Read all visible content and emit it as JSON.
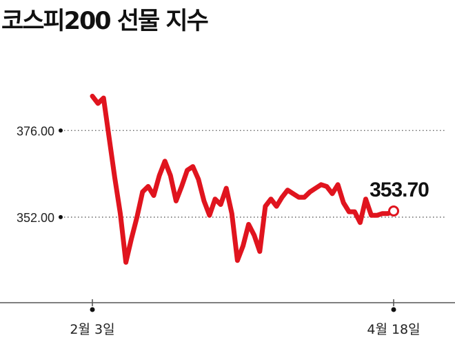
{
  "title": "코스피200 선물 지수",
  "chart_data": {
    "type": "line",
    "title": "코스피200 선물 지수",
    "xlabel": "",
    "ylabel": "",
    "ylim": [
      339.0,
      394.0
    ],
    "yticks": [
      {
        "value": 376.0,
        "label": "376.00"
      },
      {
        "value": 352.0,
        "label": "352.00"
      }
    ],
    "xticks": [
      {
        "index": 0,
        "label": "2월 3일"
      },
      {
        "index": 54,
        "label": "4월 18일"
      }
    ],
    "grid": "dotted horizontal at y ticks",
    "color": "#e0141e",
    "last_value_label": "353.70",
    "series": [
      {
        "values": [
          385.5,
          383.5,
          385.0,
          374.0,
          363.0,
          353.0,
          339.5,
          346.0,
          352.0,
          359.0,
          360.5,
          358.0,
          363.5,
          367.5,
          363.5,
          356.5,
          360.5,
          365.0,
          366.0,
          362.5,
          356.5,
          352.5,
          357.0,
          355.5,
          360.0,
          353.0,
          340.0,
          344.0,
          350.0,
          347.0,
          342.5,
          355.0,
          357.0,
          355.0,
          357.5,
          359.5,
          358.5,
          357.5,
          357.5,
          359.0,
          360.0,
          361.0,
          360.5,
          358.5,
          361.0,
          356.0,
          353.5,
          353.5,
          350.5,
          357.0,
          352.5,
          352.5,
          353.0,
          353.0,
          353.7
        ]
      }
    ]
  }
}
